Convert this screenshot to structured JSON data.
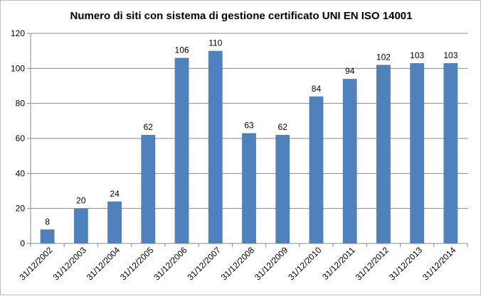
{
  "chart_data": {
    "type": "bar",
    "title": "Numero di siti con sistema di gestione certificato UNI EN ISO 14001",
    "xlabel": "",
    "ylabel": "",
    "categories": [
      "31/12/2002",
      "31/12/2003",
      "31/12/2004",
      "31/12/2005",
      "31/12/2006",
      "31/12/2007",
      "31/12/2008",
      "31/12/2009",
      "31/12/2010",
      "31/12/2011",
      "31/12/2012",
      "31/12/2013",
      "31/12/2014"
    ],
    "values": [
      8,
      20,
      24,
      62,
      106,
      110,
      63,
      62,
      84,
      94,
      102,
      103,
      103
    ],
    "ylim": [
      0,
      120
    ],
    "yticks": [
      0,
      20,
      40,
      60,
      80,
      100,
      120
    ],
    "grid": true,
    "legend": "none",
    "data_labels": true,
    "bar_color": "#4f81bd"
  }
}
